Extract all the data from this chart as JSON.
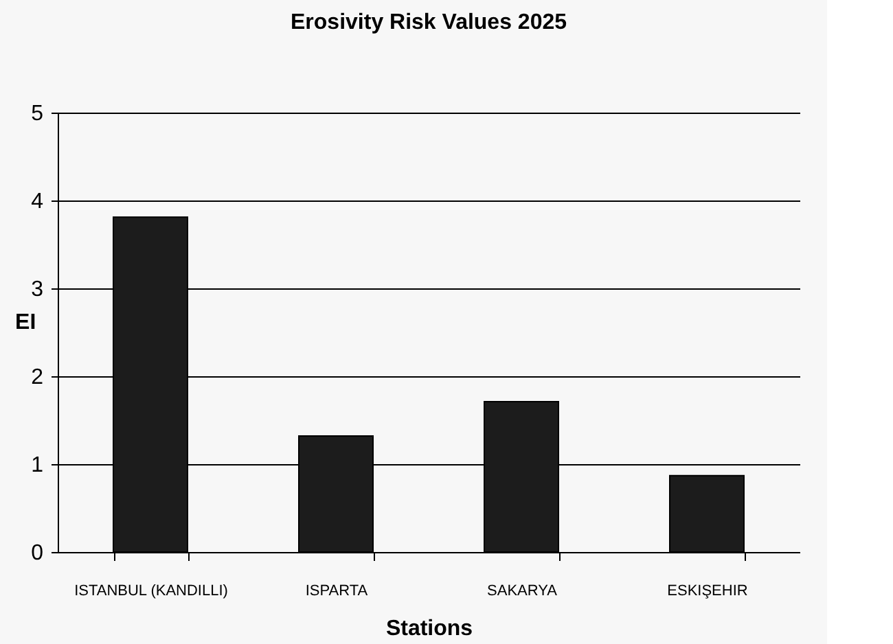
{
  "chart_data": {
    "type": "bar",
    "title": "Erosivity Risk Values 2025",
    "xlabel": "Stations",
    "ylabel": "EI",
    "categories": [
      "ISTANBUL (KANDILLI)",
      "ISPARTA",
      "SAKARYA",
      "ESKIŞEHIR"
    ],
    "values": [
      3.81,
      1.32,
      1.71,
      0.87
    ],
    "color": "#1c1c1c",
    "ylim": [
      0,
      5
    ],
    "yticks": [
      0,
      1,
      2,
      3,
      4,
      5
    ],
    "grid": "y"
  }
}
